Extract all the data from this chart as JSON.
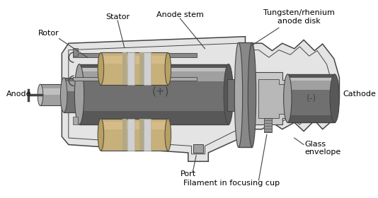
{
  "bg_color": "#ffffff",
  "oc": "#444444",
  "gray_light": "#c0c0c0",
  "gray_mid": "#a0a0a0",
  "gray_dark": "#707070",
  "gray_darker": "#585858",
  "coil_tan": "#c8b07a",
  "coil_stripe_light": "#e0d4b8",
  "coil_stripe_silver": "#d0d0d0",
  "envelope_fill": "#e4e4e4",
  "labels": {
    "stator": "Stator",
    "rotor": "Rotor",
    "anode_stem": "Anode stem",
    "tungsten": "Tungsten/rhenium\nanode disk",
    "anode": "Anode",
    "cathode": "Cathode",
    "port": "Port",
    "filament": "Filament in focusing cup",
    "glass": "Glass\nenvelope",
    "plus": "(+)",
    "minus": "(-)"
  },
  "figsize": [
    5.34,
    2.8
  ],
  "dpi": 100
}
